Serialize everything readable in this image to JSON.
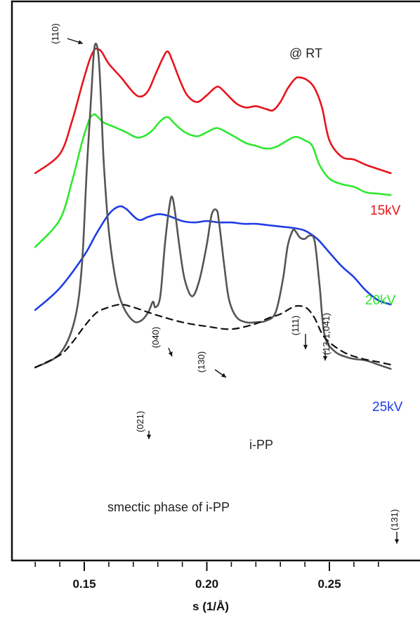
{
  "chart_data": {
    "type": "line",
    "xlabel": "s (1/Å)",
    "xlim": [
      0.13,
      0.275
    ],
    "xticks": [
      {
        "value": 0.15,
        "label": "0.15"
      },
      {
        "value": 0.2,
        "label": "0.20"
      },
      {
        "value": 0.25,
        "label": "0.25"
      }
    ],
    "minor_tick_step": 0.01,
    "annotation": "@ RT",
    "legend_placement": "right, beside each curve",
    "series": [
      {
        "name": "15kV",
        "color": "#e8141c",
        "style": "solid",
        "x": [
          0.13,
          0.14,
          0.145,
          0.149,
          0.152,
          0.154,
          0.155,
          0.157,
          0.16,
          0.165,
          0.17,
          0.173,
          0.176,
          0.179,
          0.182,
          0.184,
          0.186,
          0.189,
          0.192,
          0.196,
          0.2,
          0.203,
          0.205,
          0.208,
          0.212,
          0.216,
          0.22,
          0.224,
          0.227,
          0.23,
          0.233,
          0.236,
          0.238,
          0.241,
          0.244,
          0.247,
          0.25,
          0.255,
          0.26,
          0.265,
          0.27,
          0.275
        ],
        "y": [
          290,
          360,
          480,
          610,
          700,
          740,
          745,
          735,
          690,
          640,
          585,
          570,
          590,
          650,
          710,
          735,
          700,
          630,
          575,
          550,
          575,
          600,
          605,
          580,
          545,
          530,
          535,
          525,
          520,
          550,
          600,
          635,
          640,
          630,
          600,
          530,
          410,
          350,
          340,
          320,
          305,
          290
        ]
      },
      {
        "name": "20kV",
        "color": "#2ee82e",
        "style": "solid",
        "x": [
          0.13,
          0.14,
          0.145,
          0.149,
          0.152,
          0.154,
          0.155,
          0.158,
          0.162,
          0.167,
          0.172,
          0.177,
          0.181,
          0.184,
          0.187,
          0.191,
          0.196,
          0.2,
          0.204,
          0.208,
          0.212,
          0.216,
          0.22,
          0.224,
          0.228,
          0.232,
          0.235,
          0.237,
          0.24,
          0.243,
          0.246,
          0.25,
          0.255,
          0.26,
          0.265,
          0.27,
          0.275
        ],
        "y": [
          20,
          120,
          260,
          400,
          485,
          505,
          500,
          475,
          460,
          440,
          420,
          440,
          480,
          495,
          470,
          440,
          425,
          440,
          455,
          440,
          420,
          400,
          390,
          380,
          385,
          405,
          420,
          422,
          410,
          390,
          320,
          270,
          250,
          240,
          220,
          215,
          210
        ]
      },
      {
        "name": "25kV",
        "color": "#1f3de6",
        "style": "solid",
        "x": [
          0.13,
          0.14,
          0.15,
          0.155,
          0.16,
          0.164,
          0.167,
          0.172,
          0.176,
          0.18,
          0.184,
          0.19,
          0.195,
          0.2,
          0.205,
          0.21,
          0.215,
          0.22,
          0.225,
          0.23,
          0.235,
          0.24,
          0.245,
          0.25,
          0.255,
          0.26,
          0.265,
          0.27,
          0.275
        ],
        "y": [
          -210,
          -130,
          -10,
          70,
          140,
          168,
          160,
          120,
          130,
          140,
          135,
          115,
          110,
          115,
          110,
          110,
          105,
          105,
          100,
          95,
          90,
          80,
          50,
          0,
          -50,
          -90,
          -140,
          -175,
          -190
        ]
      },
      {
        "name": "i-PP",
        "color": "#555555",
        "style": "solid",
        "x": [
          0.13,
          0.14,
          0.146,
          0.149,
          0.151,
          0.153,
          0.154,
          0.155,
          0.156,
          0.157,
          0.158,
          0.16,
          0.163,
          0.166,
          0.17,
          0.173,
          0.176,
          0.178,
          0.179,
          0.181,
          0.183,
          0.185,
          0.186,
          0.187,
          0.189,
          0.191,
          0.194,
          0.197,
          0.2,
          0.202,
          0.204,
          0.205,
          0.207,
          0.209,
          0.212,
          0.216,
          0.22,
          0.224,
          0.228,
          0.231,
          0.233,
          0.235,
          0.236,
          0.238,
          0.24,
          0.242,
          0.244,
          0.246,
          0.248,
          0.252,
          0.258,
          0.265,
          0.27,
          0.275
        ],
        "y": [
          -420,
          -370,
          -250,
          -50,
          300,
          600,
          740,
          760,
          700,
          520,
          320,
          80,
          -110,
          -200,
          -250,
          -250,
          -220,
          -180,
          -200,
          -160,
          40,
          185,
          200,
          150,
          10,
          -100,
          -160,
          -100,
          30,
          140,
          155,
          110,
          -40,
          -170,
          -235,
          -255,
          -255,
          -250,
          -220,
          -100,
          25,
          80,
          80,
          55,
          50,
          62,
          40,
          -120,
          -300,
          -360,
          -385,
          -395,
          -410,
          -425
        ]
      },
      {
        "name": "smectic phase of i-PP",
        "color": "#111111",
        "style": "dashed",
        "x": [
          0.13,
          0.14,
          0.145,
          0.15,
          0.155,
          0.16,
          0.165,
          0.17,
          0.175,
          0.18,
          0.19,
          0.2,
          0.21,
          0.22,
          0.225,
          0.23,
          0.235,
          0.238,
          0.241,
          0.244,
          0.248,
          0.255,
          0.262,
          0.27,
          0.275
        ],
        "y": [
          -420,
          -375,
          -330,
          -270,
          -220,
          -200,
          -190,
          -200,
          -215,
          -230,
          -255,
          -270,
          -280,
          -260,
          -240,
          -225,
          -200,
          -195,
          -205,
          -240,
          -310,
          -360,
          -385,
          -400,
          -410
        ]
      }
    ],
    "peak_labels": [
      {
        "label": "(110)",
        "x": 0.155
      },
      {
        "label": "(021)",
        "x": 0.178
      },
      {
        "label": "(040)",
        "x": 0.186
      },
      {
        "label": "(130)",
        "x": 0.205
      },
      {
        "label": "(111)",
        "x": 0.235
      },
      {
        "label": "(13-1,041)",
        "x": 0.242
      },
      {
        "label": "(131)",
        "x": 0.268
      }
    ]
  }
}
